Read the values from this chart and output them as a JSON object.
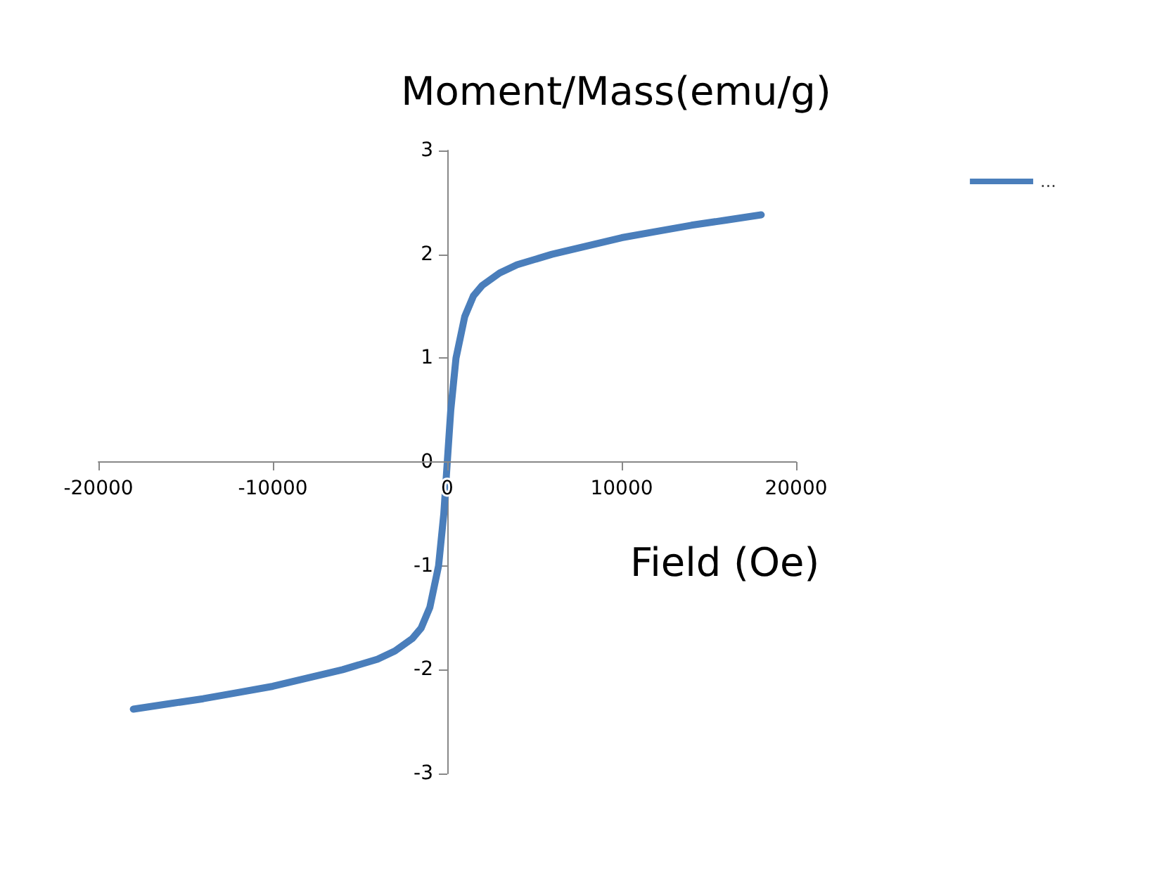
{
  "chart_data": {
    "type": "line",
    "title": "Moment/Mass(emu/g)",
    "xlabel": "Field (Oe)",
    "x": [
      -18000,
      -16000,
      -14000,
      -12000,
      -10000,
      -8000,
      -6000,
      -4000,
      -3000,
      -2000,
      -1500,
      -1000,
      -500,
      -200,
      0,
      200,
      500,
      1000,
      1500,
      2000,
      3000,
      4000,
      6000,
      8000,
      10000,
      12000,
      14000,
      16000,
      18000
    ],
    "series": [
      {
        "name": "...",
        "color": "#4a7ebb",
        "values": [
          -2.38,
          -2.33,
          -2.28,
          -2.22,
          -2.16,
          -2.08,
          -2.0,
          -1.9,
          -1.82,
          -1.7,
          -1.6,
          -1.4,
          -1.0,
          -0.5,
          0,
          0.5,
          1.0,
          1.4,
          1.6,
          1.7,
          1.82,
          1.9,
          2.0,
          2.08,
          2.16,
          2.22,
          2.28,
          2.33,
          2.38
        ]
      }
    ],
    "xlim": [
      -20000,
      20000
    ],
    "xticks": [
      -20000,
      -10000,
      0,
      10000,
      20000
    ],
    "ylim": [
      -3,
      3
    ],
    "yticks": [
      -3,
      -2,
      -1,
      0,
      1,
      2,
      3
    ],
    "grid": false,
    "legend": "top right",
    "marker": "none",
    "line_style": "solid"
  }
}
